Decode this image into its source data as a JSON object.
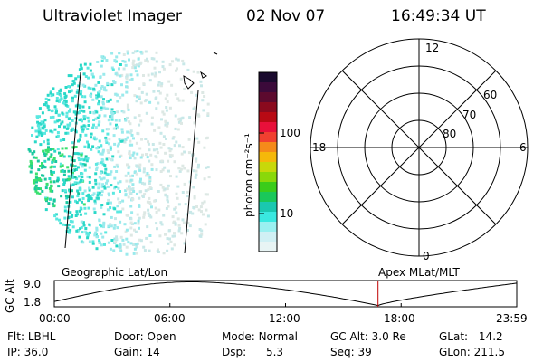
{
  "header": {
    "instrument": "Ultraviolet Imager",
    "date": "02 Nov 07",
    "time": "16:49:34 UT"
  },
  "colorbar": {
    "label": "photon cm⁻²s⁻¹",
    "ticks": [
      "100",
      "10"
    ],
    "colors": [
      "#1a0a2e",
      "#3b0a3a",
      "#5c0a2e",
      "#8a0a1e",
      "#b80a14",
      "#e8103a",
      "#f04030",
      "#f58a1a",
      "#f5b80a",
      "#c8d80a",
      "#8ad80a",
      "#3acc1a",
      "#1ac85a",
      "#1ac8b0",
      "#3ae8e0",
      "#9af0f0",
      "#d0f0f4",
      "#e8f4f4"
    ]
  },
  "polar": {
    "mlt_labels": {
      "top": "12",
      "left": "18",
      "right": "6",
      "bottom": "0"
    },
    "lat_labels": [
      "60",
      "70",
      "80"
    ]
  },
  "timeline": {
    "ylabel": "GC Alt",
    "yticks": [
      "9.0",
      "1.8"
    ],
    "left_label": "Geographic Lat/Lon",
    "right_label": "Apex MLat/MLT",
    "xticks": [
      "00:00",
      "06:00",
      "12:00",
      "18:00",
      "23:59"
    ],
    "current_time_fraction": 0.7
  },
  "info": {
    "filter": {
      "label": "Flt:",
      "value": "LBHL"
    },
    "ip": {
      "label": "IP:",
      "value": "36.0"
    },
    "door": {
      "label": "Door:",
      "value": "Open"
    },
    "gain": {
      "label": "Gain:",
      "value": "14"
    },
    "mode": {
      "label": "Mode:",
      "value": "Normal"
    },
    "dsp": {
      "label": "Dsp:",
      "value": "5.3"
    },
    "gcalt": {
      "label": "GC Alt:",
      "value": "3.0 Re"
    },
    "seq": {
      "label": "Seq:",
      "value": "39"
    },
    "glat": {
      "label": "GLat:",
      "value": "14.2"
    },
    "glon": {
      "label": "GLon:",
      "value": "211.5"
    }
  }
}
